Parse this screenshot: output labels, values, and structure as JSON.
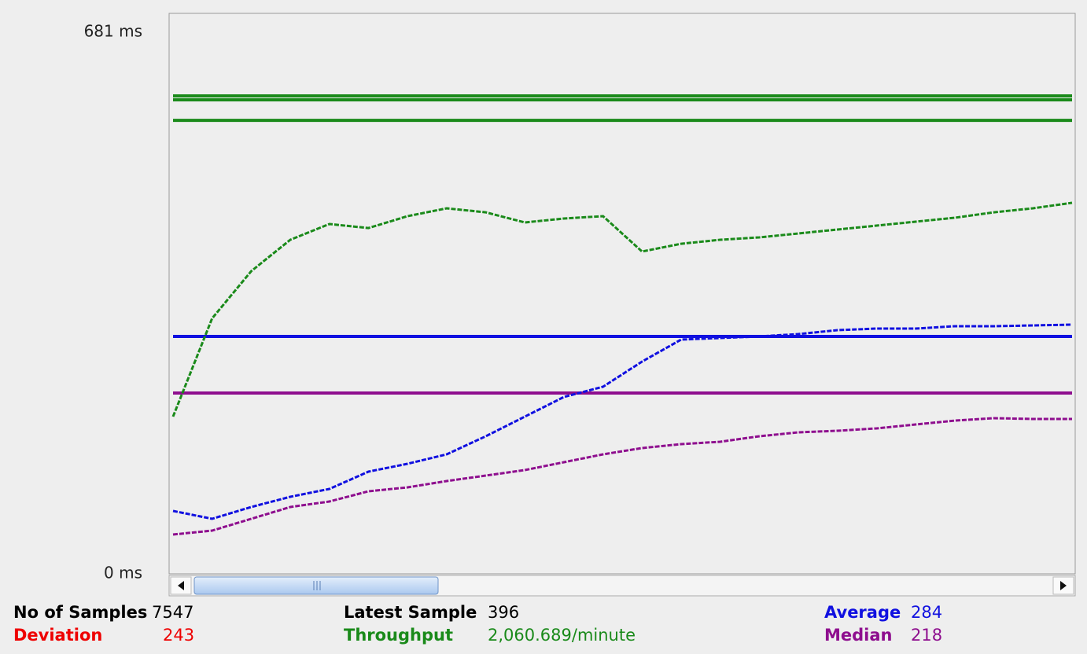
{
  "chart_data": {
    "type": "line",
    "ylim": [
      0,
      681
    ],
    "yticks": [
      {
        "value": 0,
        "label": "0 ms"
      },
      {
        "value": 681,
        "label": "681 ms"
      }
    ],
    "series": [
      {
        "color": "#1a8a1a",
        "values": [
          191.0,
          310.4,
          367.7,
          405.9,
          425.0,
          420.2,
          434.6,
          444.1,
          439.3,
          426.9,
          431.7,
          434.6,
          391.6,
          401.1,
          405.9,
          408.8,
          413.6,
          418.3,
          423.1,
          427.9,
          432.7,
          439.3,
          444.1,
          450.8
        ]
      },
      {
        "color": "#1010e0",
        "values": [
          76.4,
          66.9,
          81.2,
          93.6,
          103.2,
          124.2,
          133.7,
          145.2,
          167.1,
          191.0,
          214.9,
          227.3,
          257.9,
          284.6,
          286.5,
          288.4,
          291.3,
          296.1,
          298.0,
          298.0,
          300.9,
          300.9,
          301.8,
          302.8
        ]
      },
      {
        "color": "#8e0e8e",
        "values": [
          47.8,
          52.5,
          66.9,
          81.2,
          87.9,
          100.3,
          105.1,
          112.7,
          119.4,
          126.1,
          135.6,
          145.2,
          152.8,
          157.6,
          160.5,
          167.1,
          171.9,
          173.8,
          176.7,
          181.5,
          186.2,
          189.1,
          188.2,
          188.2
        ]
      }
    ],
    "hlines": [
      {
        "value": 580.7,
        "color": "#1a8a1a"
      },
      {
        "value": 575.9,
        "color": "#1a8a1a"
      },
      {
        "value": 551.0,
        "color": "#1a8a1a"
      },
      {
        "value": 288.4,
        "color": "#1010e0"
      },
      {
        "value": 219.7,
        "color": "#8e0e8e"
      }
    ]
  },
  "stats": [
    {
      "label": "No of Samples",
      "value": "7547",
      "label_color": "#000000",
      "value_color": "#000000"
    },
    {
      "label": "Deviation",
      "value": "243",
      "label_color": "#ee0000",
      "value_color": "#ee0000"
    },
    {
      "label": "Latest Sample",
      "value": "396",
      "label_color": "#000000",
      "value_color": "#000000"
    },
    {
      "label": "Throughput",
      "value": "2,060.689/minute",
      "label_color": "#1a8a1a",
      "value_color": "#1a8a1a"
    },
    {
      "label": "Average",
      "value": "284",
      "label_color": "#1010e0",
      "value_color": "#1010e0"
    },
    {
      "label": "Median",
      "value": "218",
      "label_color": "#8e0e8e",
      "value_color": "#8e0e8e"
    }
  ]
}
